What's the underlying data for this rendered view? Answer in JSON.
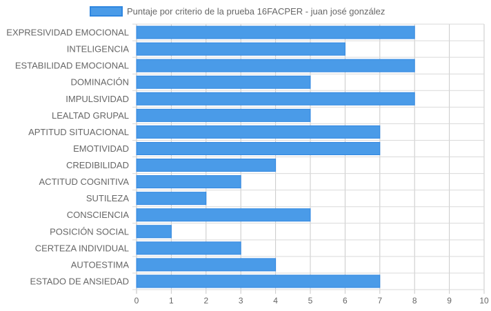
{
  "chart_data": {
    "type": "bar",
    "orientation": "horizontal",
    "categories": [
      "EXPRESIVIDAD EMOCIONAL",
      "INTELIGENCIA",
      "ESTABILIDAD EMOCIONAL",
      "DOMINACIÓN",
      "IMPULSIVIDAD",
      "LEALTAD GRUPAL",
      "APTITUD SITUACIONAL",
      "EMOTIVIDAD",
      "CREDIBILIDAD",
      "ACTITUD COGNITIVA",
      "SUTILEZA",
      "CONSCIENCIA",
      "POSICIÓN SOCIAL",
      "CERTEZA INDIVIDUAL",
      "AUTOESTIMA",
      "ESTADO DE ANSIEDAD"
    ],
    "series": [
      {
        "name": "Puntaje por criterio de la prueba 16FACPER - juan josé gonzález",
        "values": [
          8,
          6,
          8,
          5,
          8,
          5,
          7,
          7,
          4,
          3,
          2,
          5,
          1,
          3,
          4,
          7
        ],
        "color": "#4a9be8",
        "border_color": "#2f86e0"
      }
    ],
    "xlim": [
      0,
      10
    ],
    "x_ticks": [
      "0",
      "1",
      "2",
      "3",
      "4",
      "5",
      "6",
      "7",
      "8",
      "9",
      "10"
    ],
    "legend_position": "top",
    "grid": true,
    "grid_color": "#d9d9d9"
  }
}
